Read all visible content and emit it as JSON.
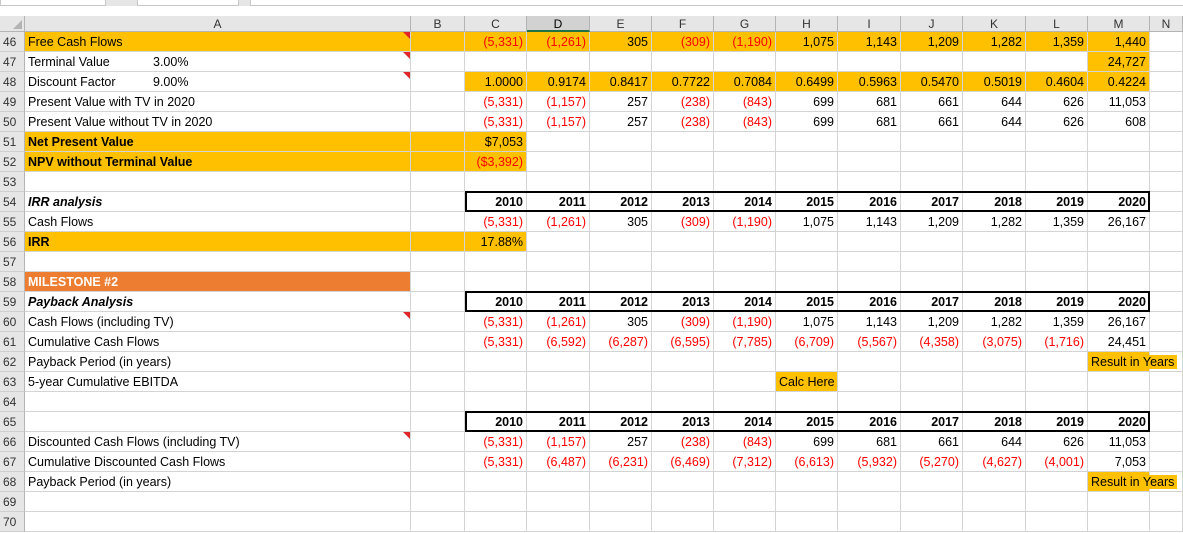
{
  "colors": {
    "accent_yellow": "#ffc000",
    "accent_orange": "#ed7d31",
    "negative": "#ff0000",
    "header_gray": "#e6e6e6"
  },
  "columns": [
    "A",
    "B",
    "C",
    "D",
    "E",
    "F",
    "G",
    "H",
    "I",
    "J",
    "K",
    "L",
    "M",
    "N"
  ],
  "selected_column": "D",
  "rows": [
    {
      "num": "46",
      "cells": [
        {
          "col": "A",
          "text": "Free Cash Flows",
          "fill": "yellow",
          "comment": true
        },
        {
          "col": "B",
          "fill": "yellow"
        },
        {
          "col": "C",
          "text": "(5,331)",
          "fill": "yellow",
          "neg": true
        },
        {
          "col": "D",
          "text": "(1,261)",
          "fill": "yellow",
          "neg": true
        },
        {
          "col": "E",
          "text": "305",
          "fill": "yellow"
        },
        {
          "col": "F",
          "text": "(309)",
          "fill": "yellow",
          "neg": true
        },
        {
          "col": "G",
          "text": "(1,190)",
          "fill": "yellow",
          "neg": true
        },
        {
          "col": "H",
          "text": "1,075",
          "fill": "yellow"
        },
        {
          "col": "I",
          "text": "1,143",
          "fill": "yellow"
        },
        {
          "col": "J",
          "text": "1,209",
          "fill": "yellow"
        },
        {
          "col": "K",
          "text": "1,282",
          "fill": "yellow"
        },
        {
          "col": "L",
          "text": "1,359",
          "fill": "yellow"
        },
        {
          "col": "M",
          "text": "1,440",
          "fill": "yellow"
        }
      ]
    },
    {
      "num": "47",
      "cells": [
        {
          "col": "A",
          "text": "Terminal Value",
          "extra": "3.00%",
          "comment": true
        },
        {
          "col": "M",
          "text": "24,727",
          "fill": "yellow"
        }
      ]
    },
    {
      "num": "48",
      "cells": [
        {
          "col": "A",
          "text": "Discount Factor",
          "extra": "9.00%",
          "comment": true
        },
        {
          "col": "C",
          "text": "1.0000",
          "fill": "yellow"
        },
        {
          "col": "D",
          "text": "0.9174",
          "fill": "yellow"
        },
        {
          "col": "E",
          "text": "0.8417",
          "fill": "yellow"
        },
        {
          "col": "F",
          "text": "0.7722",
          "fill": "yellow"
        },
        {
          "col": "G",
          "text": "0.7084",
          "fill": "yellow"
        },
        {
          "col": "H",
          "text": "0.6499",
          "fill": "yellow"
        },
        {
          "col": "I",
          "text": "0.5963",
          "fill": "yellow"
        },
        {
          "col": "J",
          "text": "0.5470",
          "fill": "yellow"
        },
        {
          "col": "K",
          "text": "0.5019",
          "fill": "yellow"
        },
        {
          "col": "L",
          "text": "0.4604",
          "fill": "yellow"
        },
        {
          "col": "M",
          "text": "0.4224",
          "fill": "yellow"
        }
      ]
    },
    {
      "num": "49",
      "cells": [
        {
          "col": "A",
          "text": "Present Value with TV in 2020"
        },
        {
          "col": "C",
          "text": "(5,331)",
          "neg": true
        },
        {
          "col": "D",
          "text": "(1,157)",
          "neg": true
        },
        {
          "col": "E",
          "text": "257"
        },
        {
          "col": "F",
          "text": "(238)",
          "neg": true
        },
        {
          "col": "G",
          "text": "(843)",
          "neg": true
        },
        {
          "col": "H",
          "text": "699"
        },
        {
          "col": "I",
          "text": "681"
        },
        {
          "col": "J",
          "text": "661"
        },
        {
          "col": "K",
          "text": "644"
        },
        {
          "col": "L",
          "text": "626"
        },
        {
          "col": "M",
          "text": "11,053"
        }
      ]
    },
    {
      "num": "50",
      "cells": [
        {
          "col": "A",
          "text": "Present Value without TV in 2020"
        },
        {
          "col": "C",
          "text": "(5,331)",
          "neg": true
        },
        {
          "col": "D",
          "text": "(1,157)",
          "neg": true
        },
        {
          "col": "E",
          "text": "257"
        },
        {
          "col": "F",
          "text": "(238)",
          "neg": true
        },
        {
          "col": "G",
          "text": "(843)",
          "neg": true
        },
        {
          "col": "H",
          "text": "699"
        },
        {
          "col": "I",
          "text": "681"
        },
        {
          "col": "J",
          "text": "661"
        },
        {
          "col": "K",
          "text": "644"
        },
        {
          "col": "L",
          "text": "626"
        },
        {
          "col": "M",
          "text": "608"
        }
      ]
    },
    {
      "num": "51",
      "cells": [
        {
          "col": "A",
          "text": "Net Present Value",
          "fill": "yellow",
          "style": "bold"
        },
        {
          "col": "B",
          "fill": "yellow"
        },
        {
          "col": "C",
          "text": "$7,053",
          "fill": "yellow"
        }
      ]
    },
    {
      "num": "52",
      "cells": [
        {
          "col": "A",
          "text": "NPV without Terminal Value",
          "fill": "yellow",
          "style": "bold"
        },
        {
          "col": "B",
          "fill": "yellow"
        },
        {
          "col": "C",
          "text": "($3,392)",
          "fill": "yellow",
          "neg": true
        }
      ]
    },
    {
      "num": "53",
      "cells": []
    },
    {
      "num": "54",
      "cells": [
        {
          "col": "A",
          "text": "IRR analysis",
          "style": "bolditalic"
        },
        {
          "col": "C",
          "text": "2010",
          "style": "bold"
        },
        {
          "col": "D",
          "text": "2011",
          "style": "bold"
        },
        {
          "col": "E",
          "text": "2012",
          "style": "bold"
        },
        {
          "col": "F",
          "text": "2013",
          "style": "bold"
        },
        {
          "col": "G",
          "text": "2014",
          "style": "bold"
        },
        {
          "col": "H",
          "text": "2015",
          "style": "bold"
        },
        {
          "col": "I",
          "text": "2016",
          "style": "bold"
        },
        {
          "col": "J",
          "text": "2017",
          "style": "bold"
        },
        {
          "col": "K",
          "text": "2018",
          "style": "bold"
        },
        {
          "col": "L",
          "text": "2019",
          "style": "bold"
        },
        {
          "col": "M",
          "text": "2020",
          "style": "bold"
        }
      ]
    },
    {
      "num": "55",
      "cells": [
        {
          "col": "A",
          "text": "Cash Flows"
        },
        {
          "col": "C",
          "text": "(5,331)",
          "neg": true
        },
        {
          "col": "D",
          "text": "(1,261)",
          "neg": true
        },
        {
          "col": "E",
          "text": "305"
        },
        {
          "col": "F",
          "text": "(309)",
          "neg": true
        },
        {
          "col": "G",
          "text": "(1,190)",
          "neg": true
        },
        {
          "col": "H",
          "text": "1,075"
        },
        {
          "col": "I",
          "text": "1,143"
        },
        {
          "col": "J",
          "text": "1,209"
        },
        {
          "col": "K",
          "text": "1,282"
        },
        {
          "col": "L",
          "text": "1,359"
        },
        {
          "col": "M",
          "text": "26,167"
        }
      ]
    },
    {
      "num": "56",
      "cells": [
        {
          "col": "A",
          "text": "IRR",
          "fill": "yellow",
          "style": "bold"
        },
        {
          "col": "B",
          "fill": "yellow"
        },
        {
          "col": "C",
          "text": "17.88%",
          "fill": "yellow"
        }
      ]
    },
    {
      "num": "57",
      "cells": []
    },
    {
      "num": "58",
      "cells": [
        {
          "col": "A",
          "text": "MILESTONE #2",
          "fill": "orange"
        }
      ]
    },
    {
      "num": "59",
      "cells": [
        {
          "col": "A",
          "text": "Payback Analysis",
          "style": "bolditalic"
        },
        {
          "col": "C",
          "text": "2010",
          "style": "bold"
        },
        {
          "col": "D",
          "text": "2011",
          "style": "bold"
        },
        {
          "col": "E",
          "text": "2012",
          "style": "bold"
        },
        {
          "col": "F",
          "text": "2013",
          "style": "bold"
        },
        {
          "col": "G",
          "text": "2014",
          "style": "bold"
        },
        {
          "col": "H",
          "text": "2015",
          "style": "bold"
        },
        {
          "col": "I",
          "text": "2016",
          "style": "bold"
        },
        {
          "col": "J",
          "text": "2017",
          "style": "bold"
        },
        {
          "col": "K",
          "text": "2018",
          "style": "bold"
        },
        {
          "col": "L",
          "text": "2019",
          "style": "bold"
        },
        {
          "col": "M",
          "text": "2020",
          "style": "bold"
        }
      ]
    },
    {
      "num": "60",
      "cells": [
        {
          "col": "A",
          "text": "Cash Flows (including TV)",
          "comment": true
        },
        {
          "col": "C",
          "text": "(5,331)",
          "neg": true
        },
        {
          "col": "D",
          "text": "(1,261)",
          "neg": true
        },
        {
          "col": "E",
          "text": "305"
        },
        {
          "col": "F",
          "text": "(309)",
          "neg": true
        },
        {
          "col": "G",
          "text": "(1,190)",
          "neg": true
        },
        {
          "col": "H",
          "text": "1,075"
        },
        {
          "col": "I",
          "text": "1,143"
        },
        {
          "col": "J",
          "text": "1,209"
        },
        {
          "col": "K",
          "text": "1,282"
        },
        {
          "col": "L",
          "text": "1,359"
        },
        {
          "col": "M",
          "text": "26,167"
        }
      ]
    },
    {
      "num": "61",
      "cells": [
        {
          "col": "A",
          "text": "Cumulative Cash Flows"
        },
        {
          "col": "C",
          "text": "(5,331)",
          "neg": true
        },
        {
          "col": "D",
          "text": "(6,592)",
          "neg": true
        },
        {
          "col": "E",
          "text": "(6,287)",
          "neg": true
        },
        {
          "col": "F",
          "text": "(6,595)",
          "neg": true
        },
        {
          "col": "G",
          "text": "(7,785)",
          "neg": true
        },
        {
          "col": "H",
          "text": "(6,709)",
          "neg": true
        },
        {
          "col": "I",
          "text": "(5,567)",
          "neg": true
        },
        {
          "col": "J",
          "text": "(4,358)",
          "neg": true
        },
        {
          "col": "K",
          "text": "(3,075)",
          "neg": true
        },
        {
          "col": "L",
          "text": "(1,716)",
          "neg": true
        },
        {
          "col": "M",
          "text": "24,451"
        }
      ]
    },
    {
      "num": "62",
      "cells": [
        {
          "col": "A",
          "text": "Payback Period (in years)"
        },
        {
          "col": "M",
          "text": "Result in Years",
          "fill": "yellow",
          "overflow": true
        }
      ]
    },
    {
      "num": "63",
      "cells": [
        {
          "col": "A",
          "text": "5-year Cumulative EBITDA"
        },
        {
          "col": "H",
          "text": "Calc Here",
          "fill": "yellow",
          "center": true
        }
      ]
    },
    {
      "num": "64",
      "cells": []
    },
    {
      "num": "65",
      "cells": [
        {
          "col": "C",
          "text": "2010",
          "style": "bold"
        },
        {
          "col": "D",
          "text": "2011",
          "style": "bold"
        },
        {
          "col": "E",
          "text": "2012",
          "style": "bold"
        },
        {
          "col": "F",
          "text": "2013",
          "style": "bold"
        },
        {
          "col": "G",
          "text": "2014",
          "style": "bold"
        },
        {
          "col": "H",
          "text": "2015",
          "style": "bold"
        },
        {
          "col": "I",
          "text": "2016",
          "style": "bold"
        },
        {
          "col": "J",
          "text": "2017",
          "style": "bold"
        },
        {
          "col": "K",
          "text": "2018",
          "style": "bold"
        },
        {
          "col": "L",
          "text": "2019",
          "style": "bold"
        },
        {
          "col": "M",
          "text": "2020",
          "style": "bold"
        }
      ]
    },
    {
      "num": "66",
      "cells": [
        {
          "col": "A",
          "text": "Discounted Cash Flows (including TV)",
          "comment": true
        },
        {
          "col": "C",
          "text": "(5,331)",
          "neg": true
        },
        {
          "col": "D",
          "text": "(1,157)",
          "neg": true
        },
        {
          "col": "E",
          "text": "257"
        },
        {
          "col": "F",
          "text": "(238)",
          "neg": true
        },
        {
          "col": "G",
          "text": "(843)",
          "neg": true
        },
        {
          "col": "H",
          "text": "699"
        },
        {
          "col": "I",
          "text": "681"
        },
        {
          "col": "J",
          "text": "661"
        },
        {
          "col": "K",
          "text": "644"
        },
        {
          "col": "L",
          "text": "626"
        },
        {
          "col": "M",
          "text": "11,053"
        }
      ]
    },
    {
      "num": "67",
      "cells": [
        {
          "col": "A",
          "text": "Cumulative Discounted Cash Flows"
        },
        {
          "col": "C",
          "text": "(5,331)",
          "neg": true
        },
        {
          "col": "D",
          "text": "(6,487)",
          "neg": true
        },
        {
          "col": "E",
          "text": "(6,231)",
          "neg": true
        },
        {
          "col": "F",
          "text": "(6,469)",
          "neg": true
        },
        {
          "col": "G",
          "text": "(7,312)",
          "neg": true
        },
        {
          "col": "H",
          "text": "(6,613)",
          "neg": true
        },
        {
          "col": "I",
          "text": "(5,932)",
          "neg": true
        },
        {
          "col": "J",
          "text": "(5,270)",
          "neg": true
        },
        {
          "col": "K",
          "text": "(4,627)",
          "neg": true
        },
        {
          "col": "L",
          "text": "(4,001)",
          "neg": true
        },
        {
          "col": "M",
          "text": "7,053"
        }
      ]
    },
    {
      "num": "68",
      "cells": [
        {
          "col": "A",
          "text": "Payback Period (in years)"
        },
        {
          "col": "M",
          "text": "Result in Years",
          "fill": "yellow",
          "overflow": true
        }
      ]
    },
    {
      "num": "69",
      "cells": []
    },
    {
      "num": "70",
      "cells": []
    }
  ]
}
